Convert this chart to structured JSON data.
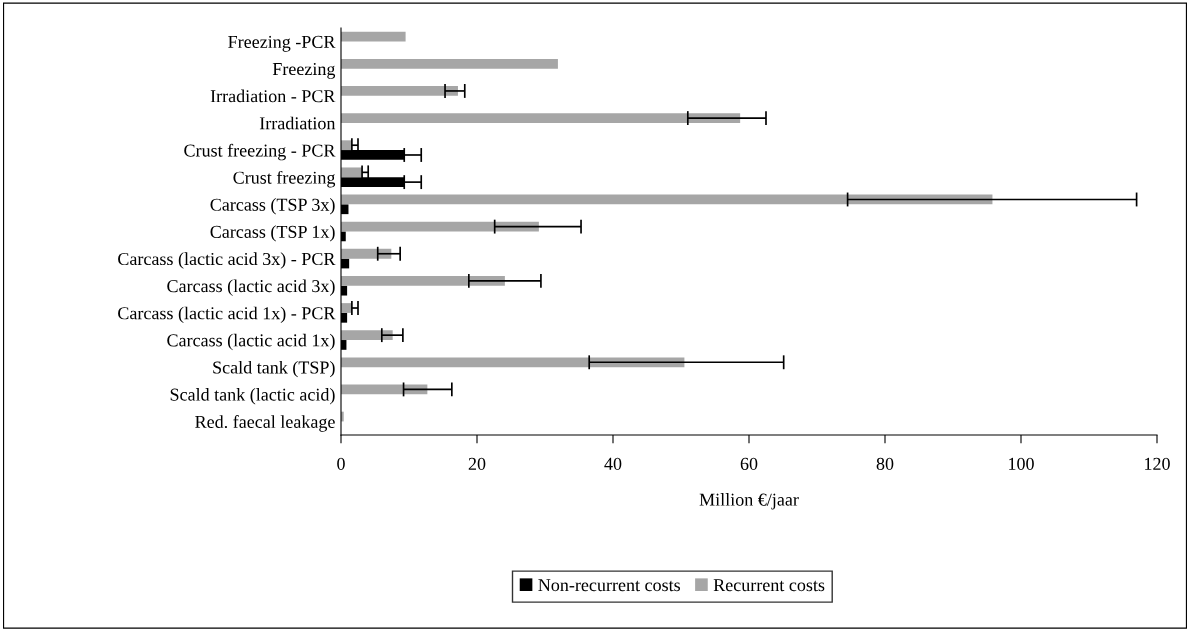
{
  "chart_data": {
    "type": "bar",
    "orientation": "horizontal",
    "xlabel": "Million €/jaar",
    "categories": [
      "Freezing -PCR",
      "Freezing",
      "Irradiation - PCR",
      "Irradiation",
      "Crust freezing - PCR",
      "Crust freezing",
      "Carcass (TSP 3x)",
      "Carcass (TSP 1x)",
      "Carcass (lactic acid 3x) - PCR",
      "Carcass (lactic acid 3x)",
      "Carcass (lactic acid 1x) - PCR",
      "Carcass (lactic acid 1x)",
      "Scald tank (TSP)",
      "Scald tank (lactic acid)",
      "Red. faecal leakage"
    ],
    "series": [
      {
        "name": "Non-recurrent costs",
        "color": "#000000",
        "values": [
          null,
          null,
          null,
          null,
          9.3,
          9.3,
          1.1,
          0.7,
          1.2,
          0.9,
          0.9,
          0.8,
          null,
          null,
          null
        ],
        "errors": [
          null,
          null,
          null,
          null,
          [
            9.3,
            11.8
          ],
          [
            9.3,
            11.8
          ],
          null,
          null,
          null,
          null,
          null,
          null,
          null,
          null,
          null
        ]
      },
      {
        "name": "Recurrent costs",
        "color": "#a6a6a6",
        "values": [
          9.5,
          31.9,
          17.2,
          58.7,
          1.6,
          3.1,
          95.8,
          29.1,
          7.4,
          24.1,
          1.6,
          7.6,
          50.5,
          12.7,
          0.4
        ],
        "errors": [
          null,
          null,
          [
            15.3,
            18.2
          ],
          [
            51.0,
            62.5
          ],
          [
            1.6,
            2.5
          ],
          [
            3.1,
            4.0
          ],
          [
            74.5,
            117.0
          ],
          [
            22.6,
            35.3
          ],
          [
            5.4,
            8.7
          ],
          [
            18.8,
            29.4
          ],
          [
            1.6,
            2.5
          ],
          [
            6.0,
            9.1
          ],
          [
            36.5,
            65.1
          ],
          [
            9.2,
            16.3
          ],
          null
        ]
      }
    ],
    "xlim": [
      0,
      120
    ],
    "xticks": [
      0,
      20,
      40,
      60,
      80,
      100,
      120
    ],
    "grid": false,
    "legend": "bottom"
  }
}
